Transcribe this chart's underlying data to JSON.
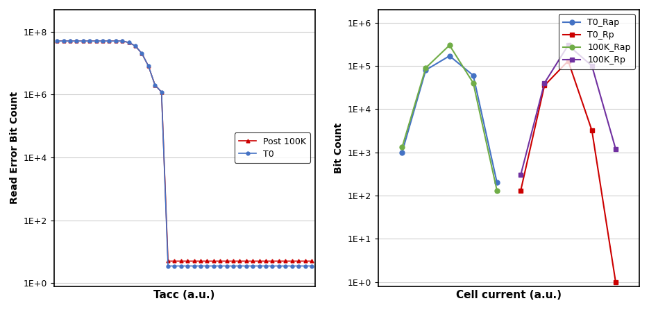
{
  "left_chart": {
    "xlabel": "Tacc (a.u.)",
    "ylabel": "Read Error Bit Count",
    "yticks": [
      1.0,
      100.0,
      10000.0,
      1000000.0,
      100000000.0
    ],
    "ytick_labels": [
      "1E+0",
      "1E+2",
      "1E+4",
      "1E+6",
      "1E+8"
    ],
    "T0_x": [
      1,
      2,
      3,
      4,
      5,
      6,
      7,
      8,
      9,
      10,
      11,
      12,
      13,
      14,
      15,
      16,
      17,
      18,
      19,
      20,
      21,
      22,
      23,
      24,
      25,
      26,
      27,
      28,
      29,
      30,
      31,
      32,
      33,
      34,
      35,
      36,
      37,
      38,
      39,
      40
    ],
    "T0_y": [
      50000000.0,
      50000000.0,
      50000000.0,
      50000000.0,
      50000000.0,
      50000000.0,
      50000000.0,
      50000000.0,
      50000000.0,
      50000000.0,
      50000000.0,
      45000000.0,
      35000000.0,
      20000000.0,
      8000000.0,
      2000000.0,
      1200000.0,
      3.5,
      3.5,
      3.5,
      3.5,
      3.5,
      3.5,
      3.5,
      3.5,
      3.5,
      3.5,
      3.5,
      3.5,
      3.5,
      3.5,
      3.5,
      3.5,
      3.5,
      3.5,
      3.5,
      3.5,
      3.5,
      3.5,
      3.5
    ],
    "post100k_x": [
      1,
      2,
      3,
      4,
      5,
      6,
      7,
      8,
      9,
      10,
      11,
      12,
      13,
      14,
      15,
      16,
      17,
      18,
      19,
      20,
      21,
      22,
      23,
      24,
      25,
      26,
      27,
      28,
      29,
      30,
      31,
      32,
      33,
      34,
      35,
      36,
      37,
      38,
      39,
      40
    ],
    "post100k_y": [
      50000000.0,
      50000000.0,
      50000000.0,
      50000000.0,
      50000000.0,
      50000000.0,
      50000000.0,
      50000000.0,
      50000000.0,
      50000000.0,
      50000000.0,
      45000000.0,
      35000000.0,
      20000000.0,
      8000000.0,
      2000000.0,
      1200000.0,
      5,
      5,
      5,
      5,
      5,
      5,
      5,
      5,
      5,
      5,
      5,
      5,
      5,
      5,
      5,
      5,
      5,
      5,
      5,
      5,
      5,
      5,
      5
    ],
    "T0_color": "#4472c4",
    "post100k_color": "#cc0000",
    "T0_label": "T0",
    "post100k_label": "Post 100K"
  },
  "right_chart": {
    "xlabel": "Cell current (a.u.)",
    "ylabel": "Bit Count",
    "yticks": [
      1.0,
      10.0,
      100.0,
      1000.0,
      10000.0,
      100000.0,
      1000000.0
    ],
    "ytick_labels": [
      "1E+0",
      "1E+1",
      "1E+2",
      "1E+3",
      "1E+4",
      "1E+5",
      "1E+6"
    ],
    "T0_Rap_x": [
      1,
      2,
      3,
      4,
      5
    ],
    "T0_Rap_y": [
      1000,
      80000,
      170000,
      60000,
      200
    ],
    "T0_Rp_x": [
      6,
      7,
      8,
      9,
      10
    ],
    "T0_Rp_y": [
      130,
      35000,
      130000,
      3200,
      1.0
    ],
    "K100_Rap_x": [
      1,
      2,
      3,
      4,
      5
    ],
    "K100_Rap_y": [
      1300,
      90000,
      300000,
      40000,
      130
    ],
    "K100_Rp_x": [
      6,
      7,
      8,
      9,
      10
    ],
    "K100_Rp_y": [
      300,
      40000,
      300000,
      100000,
      1200
    ],
    "T0_Rap_color": "#4472c4",
    "T0_Rp_color": "#cc0000",
    "K100_Rap_color": "#70ad47",
    "K100_Rp_color": "#7030a0",
    "T0_Rap_label": "T0_Rap",
    "T0_Rp_label": "T0_Rp",
    "K100_Rap_label": "100K_Rap",
    "K100_Rp_label": "100K_Rp"
  },
  "background_color": "#ffffff",
  "grid_color": "#d0d0d0"
}
